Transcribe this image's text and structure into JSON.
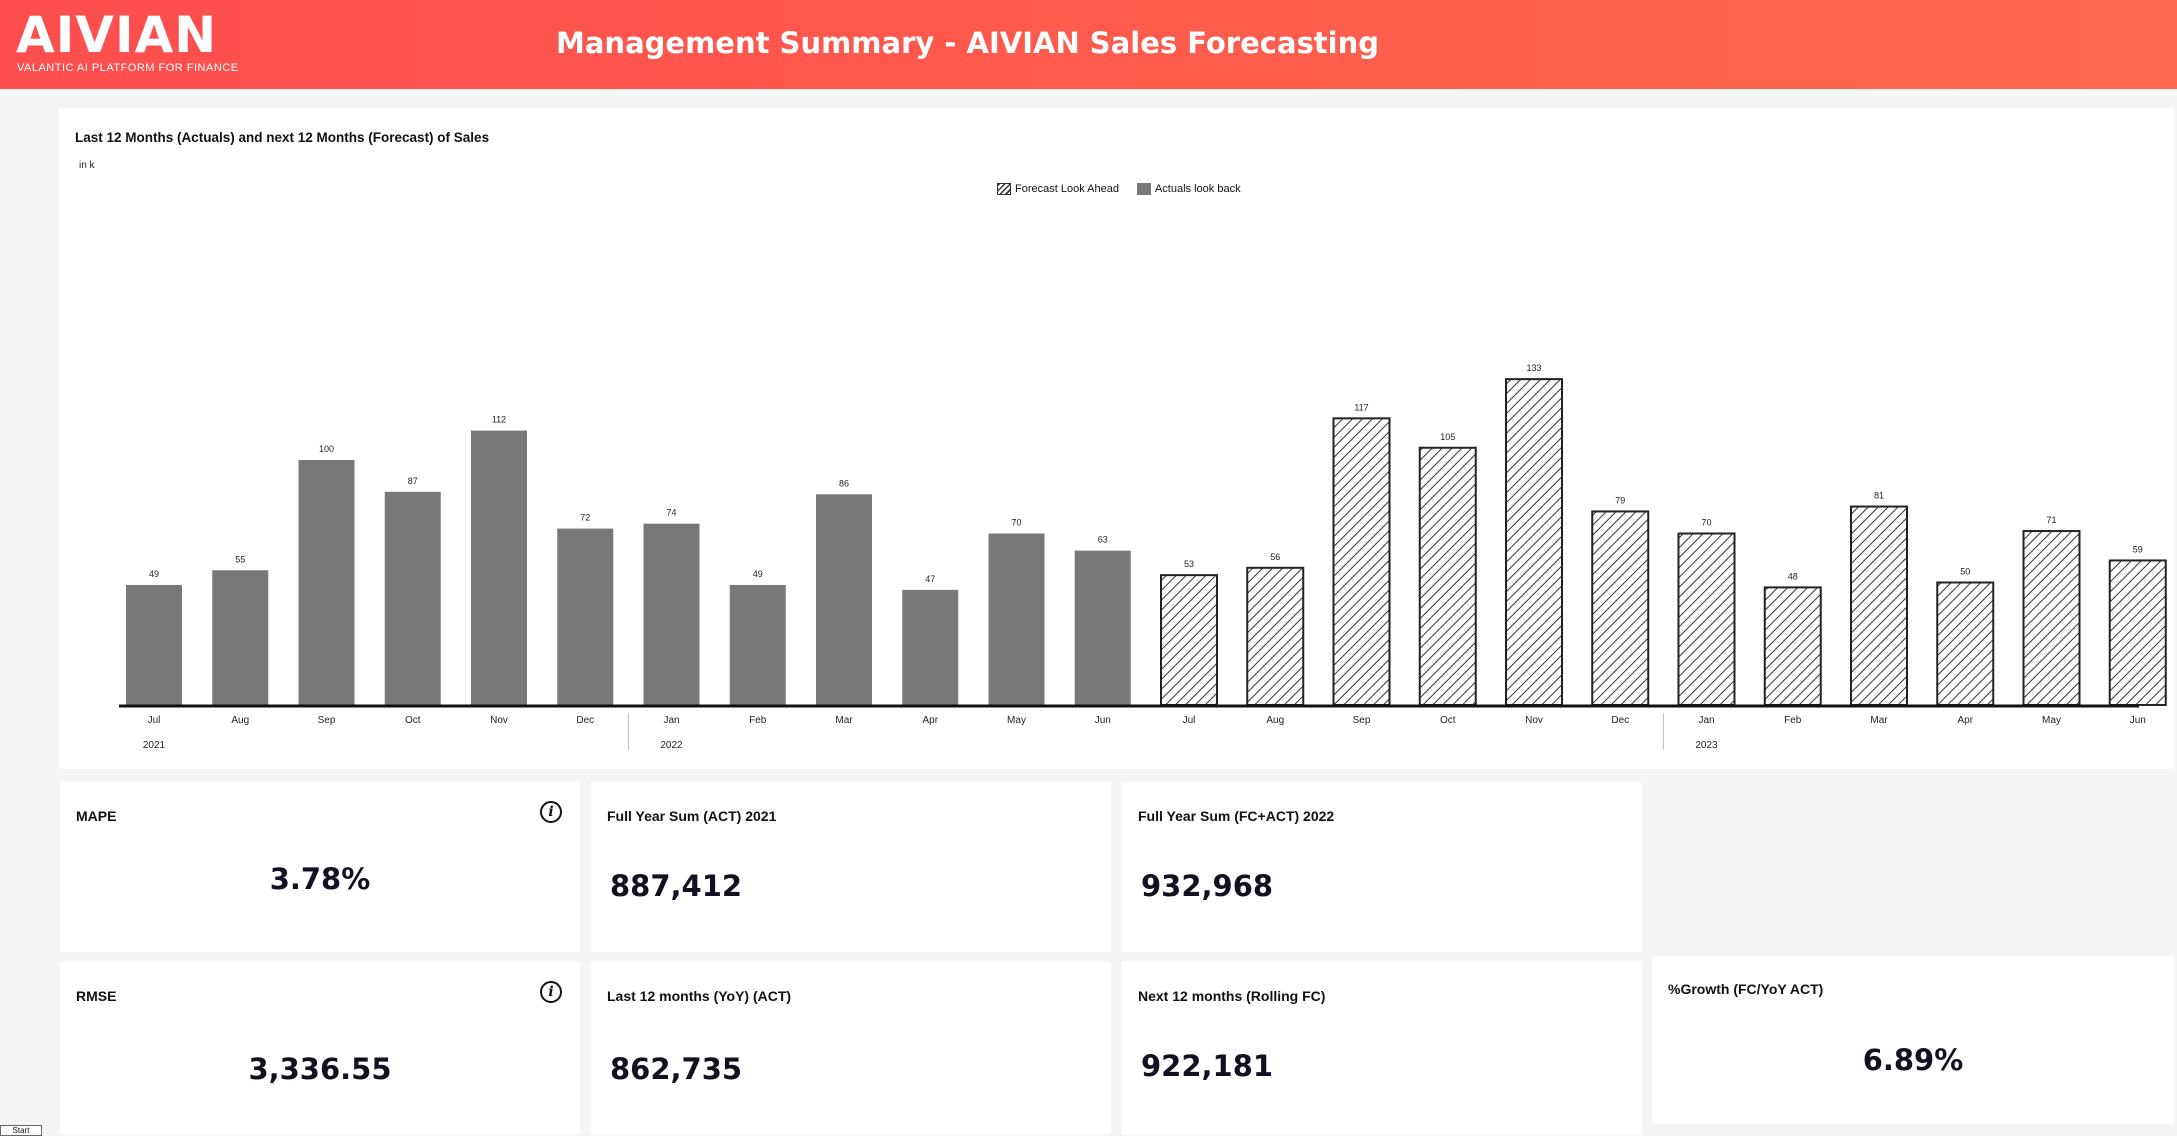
{
  "header": {
    "logo": "AIVIAN",
    "tagline": "VALANTIC AI PLATFORM FOR FINANCE",
    "title": "Management Summary - AIVIAN Sales Forecasting"
  },
  "chart_data": {
    "type": "bar",
    "title": "Last 12 Months (Actuals) and next 12 Months (Forecast) of Sales",
    "unit": "in k",
    "legend": [
      "Forecast Look Ahead",
      "Actuals look back"
    ],
    "categories": [
      "Jul",
      "Aug",
      "Sep",
      "Oct",
      "Nov",
      "Dec",
      "Jan",
      "Feb",
      "Mar",
      "Apr",
      "May",
      "Jun",
      "Jul",
      "Aug",
      "Sep",
      "Oct",
      "Nov",
      "Dec",
      "Jan",
      "Feb",
      "Mar",
      "Apr",
      "May",
      "Jun"
    ],
    "years": [
      {
        "label": "2021",
        "index": 0
      },
      {
        "label": "2022",
        "index": 6
      },
      {
        "label": "2023",
        "index": 18
      }
    ],
    "series": [
      {
        "name": "Actuals look back",
        "values": [
          49,
          55,
          100,
          87,
          112,
          72,
          74,
          49,
          86,
          47,
          70,
          63,
          null,
          null,
          null,
          null,
          null,
          null,
          null,
          null,
          null,
          null,
          null,
          null
        ]
      },
      {
        "name": "Forecast Look Ahead",
        "values": [
          null,
          null,
          null,
          null,
          null,
          null,
          null,
          null,
          null,
          null,
          null,
          null,
          53,
          56,
          117,
          105,
          133,
          79,
          70,
          48,
          81,
          50,
          71,
          59
        ]
      }
    ],
    "ylim": [
      0,
      140
    ],
    "grid": false,
    "legend_position": "top-center"
  },
  "kpis": {
    "mape": {
      "label": "MAPE",
      "value": "3.78%"
    },
    "rmse": {
      "label": "RMSE",
      "value": "3,336.55"
    },
    "fy_act_2021": {
      "label": "Full Year Sum (ACT) 2021",
      "value": "887,412"
    },
    "fy_fc_act_2022": {
      "label": "Full Year Sum (FC+ACT) 2022",
      "value": "932,968"
    },
    "last12": {
      "label": "Last 12 months (YoY) (ACT)",
      "value": "862,735"
    },
    "next12": {
      "label": "Next 12 months (Rolling FC)",
      "value": "922,181"
    },
    "growth": {
      "label": "%Growth (FC/YoY ACT)",
      "value": "6.89%"
    }
  },
  "footer": {
    "start_label": "Start"
  },
  "colors": {
    "header": "#fe5a4d",
    "actual_bar": "#787878",
    "forecast_stroke": "#222222"
  }
}
